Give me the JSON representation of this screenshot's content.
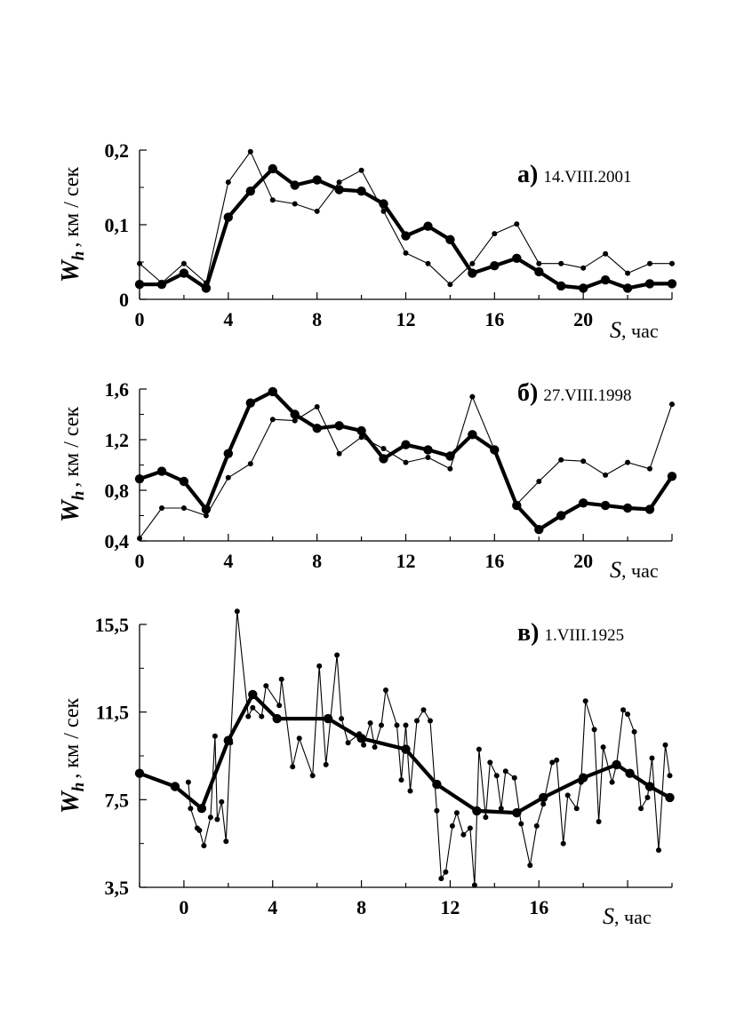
{
  "chart_data": [
    {
      "type": "line",
      "panel_letter": "а)",
      "date": "14.VIII.2001",
      "ylabel": {
        "symbol": "W",
        "subscript": "h",
        "unit": ", км / сек"
      },
      "xlabel": {
        "symbol": "S",
        "unit": ", час"
      },
      "xlim": [
        0,
        24
      ],
      "ylim": [
        0,
        0.2
      ],
      "xticks": [
        0,
        4,
        8,
        12,
        16,
        20
      ],
      "xtick_labels": [
        "0",
        "4",
        "8",
        "12",
        "16",
        "20"
      ],
      "yticks": [
        0,
        0.1,
        0.2
      ],
      "ytick_labels": [
        "0",
        "0,1",
        "0,2"
      ],
      "series": [
        {
          "style": "thick",
          "x": [
            0,
            1,
            2,
            3,
            4,
            5,
            6,
            7,
            8,
            9,
            10,
            11,
            12,
            13,
            14,
            15,
            16,
            17,
            18,
            19,
            20,
            21,
            22,
            23,
            24
          ],
          "y": [
            0.02,
            0.02,
            0.035,
            0.015,
            0.11,
            0.145,
            0.175,
            0.153,
            0.16,
            0.147,
            0.145,
            0.128,
            0.085,
            0.098,
            0.08,
            0.035,
            0.045,
            0.055,
            0.037,
            0.018,
            0.015,
            0.026,
            0.015,
            0.021,
            0.021
          ]
        },
        {
          "style": "thin",
          "x": [
            0,
            1,
            2,
            3,
            4,
            5,
            6,
            7,
            8,
            9,
            10,
            11,
            12,
            13,
            14,
            15,
            16,
            17,
            18,
            19,
            20,
            21,
            22,
            23,
            24
          ],
          "y": [
            0.048,
            0.022,
            0.048,
            0.022,
            0.157,
            0.198,
            0.133,
            0.128,
            0.118,
            0.157,
            0.173,
            0.118,
            0.062,
            0.048,
            0.02,
            0.048,
            0.088,
            0.101,
            0.048,
            0.048,
            0.042,
            0.061,
            0.035,
            0.048,
            0.048
          ]
        }
      ]
    },
    {
      "type": "line",
      "panel_letter": "б)",
      "date": "27.VIII.1998",
      "ylabel": {
        "symbol": "W",
        "subscript": "h",
        "unit": ", км / сек"
      },
      "xlabel": {
        "symbol": "S",
        "unit": ", час"
      },
      "xlim": [
        0,
        24
      ],
      "ylim": [
        0.4,
        1.6
      ],
      "xticks": [
        0,
        4,
        8,
        12,
        16,
        20
      ],
      "xtick_labels": [
        "0",
        "4",
        "8",
        "12",
        "16",
        "20"
      ],
      "yticks": [
        0.4,
        0.8,
        1.2,
        1.6
      ],
      "ytick_labels": [
        "0,4",
        "0,8",
        "1,2",
        "1,6"
      ],
      "series": [
        {
          "style": "thick",
          "x": [
            0,
            1,
            2,
            3,
            4,
            5,
            6,
            7,
            8,
            9,
            10,
            11,
            12,
            13,
            14,
            15,
            16,
            17,
            18,
            19,
            20,
            21,
            22,
            23,
            24
          ],
          "y": [
            0.89,
            0.95,
            0.87,
            0.65,
            1.09,
            1.49,
            1.58,
            1.4,
            1.29,
            1.31,
            1.27,
            1.05,
            1.16,
            1.12,
            1.07,
            1.24,
            1.12,
            0.68,
            0.49,
            0.6,
            0.7,
            0.68,
            0.66,
            0.65,
            0.91
          ]
        },
        {
          "style": "thin",
          "x": [
            0,
            1,
            2,
            3,
            4,
            5,
            6,
            7,
            8,
            9,
            10,
            11,
            12,
            13,
            14,
            15,
            16,
            17,
            18,
            19,
            20,
            21,
            22,
            23,
            24
          ],
          "y": [
            0.42,
            0.66,
            0.66,
            0.6,
            0.9,
            1.01,
            1.36,
            1.35,
            1.46,
            1.09,
            1.22,
            1.13,
            1.02,
            1.06,
            0.97,
            1.54,
            1.12,
            0.69,
            0.87,
            1.04,
            1.03,
            0.92,
            1.02,
            0.97,
            1.48
          ]
        }
      ]
    },
    {
      "type": "line",
      "panel_letter": "в)",
      "date": "1.VIII.1925",
      "ylabel": {
        "symbol": "W",
        "subscript": "h",
        "unit": ", км / сек"
      },
      "xlabel": {
        "symbol": "S",
        "unit": ", час"
      },
      "xlim": [
        -2,
        22
      ],
      "ylim": [
        3.5,
        15.5
      ],
      "xticks": [
        0,
        4,
        8,
        12,
        16
      ],
      "xtick_labels": [
        "0",
        "4",
        "8",
        "12",
        "16"
      ],
      "yticks": [
        3.5,
        7.5,
        11.5,
        15.5
      ],
      "ytick_labels": [
        "3,5",
        "7,5",
        "11,5",
        "15,5"
      ],
      "series": [
        {
          "style": "thick",
          "x": [
            -2,
            -0.4,
            0.8,
            2,
            3.1,
            4.2,
            6.5,
            8,
            10,
            11.4,
            13.2,
            15,
            16.2,
            18,
            19.5,
            20.1,
            21,
            21.9
          ],
          "y": [
            8.7,
            8.1,
            7.1,
            10.2,
            12.3,
            11.2,
            11.2,
            10.3,
            9.8,
            8.2,
            6.99,
            6.9,
            7.6,
            8.5,
            9.1,
            8.7,
            8.1,
            7.6
          ]
        },
        {
          "style": "thin",
          "x": [
            0.2,
            0.3,
            0.6,
            0.7,
            0.9,
            1.2,
            1.4,
            1.5,
            1.7,
            1.9,
            2.1,
            2.4,
            2.9,
            3.1,
            3.5,
            3.7,
            4.3,
            4.4,
            4.9,
            5.2,
            5.8,
            6.1,
            6.4,
            6.9,
            7.1,
            7.4,
            7.9,
            8.1,
            8.4,
            8.6,
            8.9,
            9.1,
            9.6,
            9.8,
            10.0,
            10.2,
            10.5,
            10.8,
            11.1,
            11.4,
            11.6,
            11.8,
            12.1,
            12.3,
            12.6,
            12.9,
            13.1,
            13.3,
            13.6,
            13.8,
            14.1,
            14.3,
            14.5,
            14.9,
            15.2,
            15.6,
            15.9,
            16.2,
            16.6,
            16.8,
            17.1,
            17.3,
            17.7,
            17.9,
            18.1,
            18.5,
            18.7,
            18.9,
            19.3,
            19.5,
            19.8,
            20.0,
            20.3,
            20.6,
            20.9,
            21.1,
            21.4,
            21.7,
            21.9
          ],
          "y": [
            8.3,
            7.1,
            6.2,
            6.1,
            5.4,
            6.7,
            10.4,
            6.6,
            7.4,
            5.6,
            10.1,
            16.1,
            11.3,
            11.7,
            11.3,
            12.7,
            11.8,
            13.0,
            9.0,
            10.3,
            8.6,
            13.6,
            9.1,
            14.1,
            11.2,
            10.1,
            10.5,
            10.0,
            11.0,
            9.9,
            10.9,
            12.5,
            10.9,
            8.4,
            10.9,
            7.9,
            11.1,
            11.6,
            11.1,
            7.0,
            3.9,
            4.2,
            6.3,
            6.9,
            5.9,
            6.2,
            3.6,
            9.8,
            6.7,
            9.2,
            8.6,
            7.1,
            8.8,
            8.5,
            6.4,
            4.5,
            6.3,
            7.3,
            9.2,
            9.3,
            5.5,
            7.7,
            7.1,
            8.3,
            12.0,
            10.7,
            6.5,
            9.9,
            8.3,
            9.1,
            11.6,
            11.4,
            10.6,
            7.1,
            7.6,
            9.4,
            5.2,
            10.0,
            8.6
          ]
        }
      ]
    }
  ]
}
